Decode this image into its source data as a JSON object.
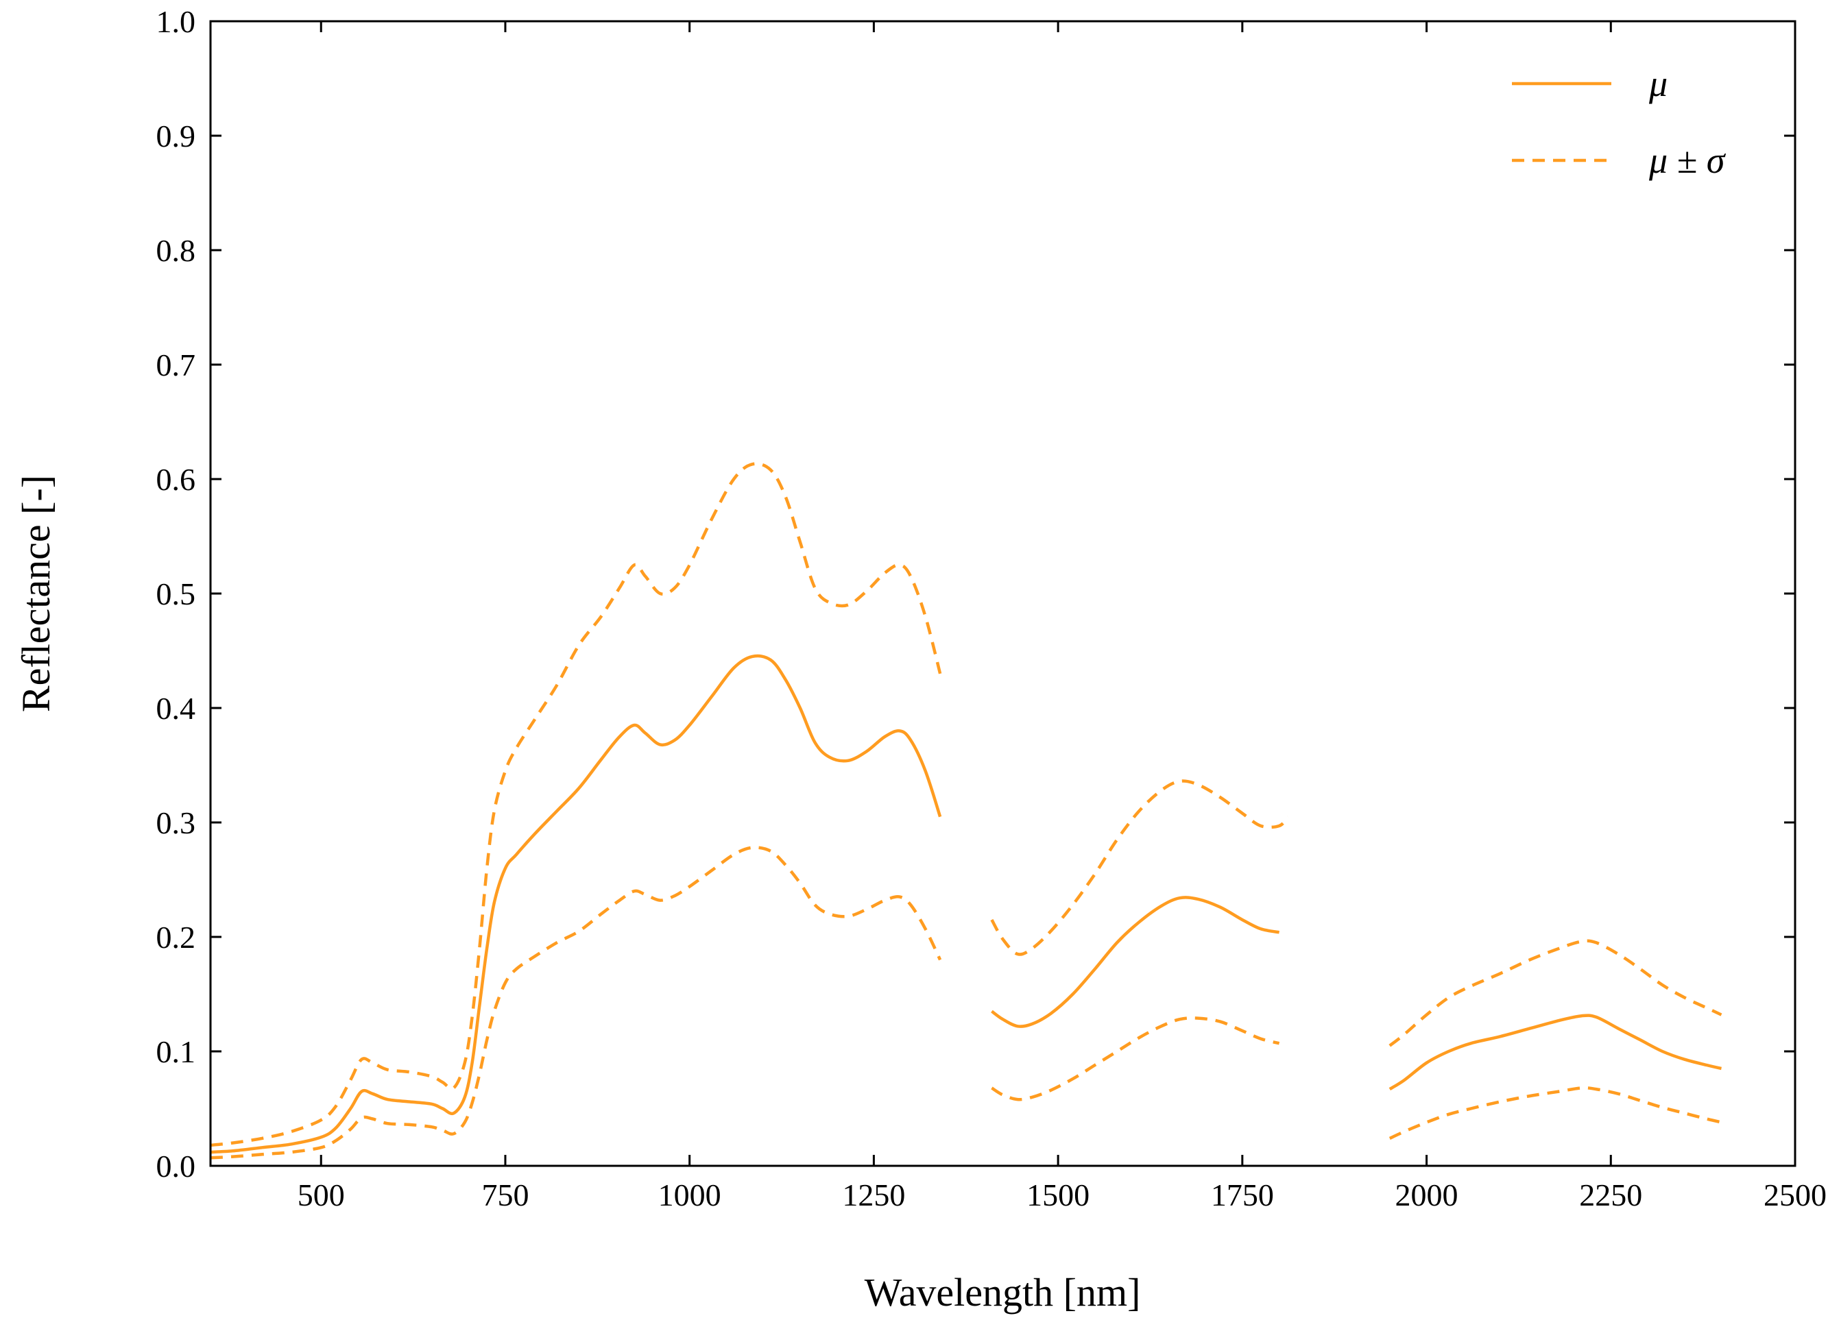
{
  "figure": {
    "background": "#ffffff",
    "accent_color": "#ff9c20",
    "axis_color": "#000000"
  },
  "legend": {
    "position": "top-right",
    "items": [
      {
        "label": "μ",
        "style": "solid"
      },
      {
        "label": "μ ± σ",
        "style": "dashed"
      }
    ]
  },
  "chart_data": {
    "type": "line",
    "title": "",
    "xlabel": "Wavelength [nm]",
    "ylabel": "Reflectance [-]",
    "xlim": [
      350,
      2500
    ],
    "ylim": [
      0,
      1
    ],
    "grid": false,
    "x_ticks": {
      "values": [
        500,
        750,
        1000,
        1250,
        1500,
        1750,
        2000,
        2250,
        2500
      ],
      "labels": [
        "500",
        "750",
        "1000",
        "1250",
        "1500",
        "1750",
        "2000",
        "2250",
        "2500"
      ]
    },
    "y_ticks": {
      "values": [
        0.0,
        0.1,
        0.2,
        0.3,
        0.4,
        0.5,
        0.6,
        0.7,
        0.8,
        0.9,
        1.0
      ],
      "labels": [
        "0.0",
        "0.1",
        "0.2",
        "0.3",
        "0.4",
        "0.5",
        "0.6",
        "0.7",
        "0.8",
        "0.9",
        "1.0"
      ]
    },
    "series": [
      {
        "id": "mu",
        "name": "μ (mean reflectance)",
        "style": "solid",
        "color": "#ff9c20",
        "segments": [
          [
            [
              350,
              0.012
            ],
            [
              380,
              0.013
            ],
            [
              420,
              0.016
            ],
            [
              460,
              0.019
            ],
            [
              500,
              0.025
            ],
            [
              520,
              0.033
            ],
            [
              540,
              0.05
            ],
            [
              555,
              0.065
            ],
            [
              570,
              0.063
            ],
            [
              590,
              0.058
            ],
            [
              620,
              0.056
            ],
            [
              650,
              0.054
            ],
            [
              665,
              0.05
            ],
            [
              680,
              0.046
            ],
            [
              695,
              0.06
            ],
            [
              705,
              0.09
            ],
            [
              715,
              0.14
            ],
            [
              725,
              0.19
            ],
            [
              735,
              0.23
            ],
            [
              750,
              0.26
            ],
            [
              765,
              0.272
            ],
            [
              790,
              0.29
            ],
            [
              820,
              0.31
            ],
            [
              850,
              0.33
            ],
            [
              880,
              0.355
            ],
            [
              905,
              0.375
            ],
            [
              925,
              0.385
            ],
            [
              940,
              0.378
            ],
            [
              960,
              0.368
            ],
            [
              980,
              0.372
            ],
            [
              1000,
              0.385
            ],
            [
              1030,
              0.41
            ],
            [
              1060,
              0.435
            ],
            [
              1085,
              0.445
            ],
            [
              1110,
              0.442
            ],
            [
              1130,
              0.425
            ],
            [
              1150,
              0.4
            ],
            [
              1170,
              0.37
            ],
            [
              1190,
              0.357
            ],
            [
              1215,
              0.354
            ],
            [
              1240,
              0.362
            ],
            [
              1265,
              0.375
            ],
            [
              1285,
              0.38
            ],
            [
              1300,
              0.372
            ],
            [
              1320,
              0.345
            ],
            [
              1340,
              0.305
            ]
          ],
          [
            [
              1410,
              0.135
            ],
            [
              1425,
              0.128
            ],
            [
              1445,
              0.122
            ],
            [
              1465,
              0.124
            ],
            [
              1490,
              0.133
            ],
            [
              1520,
              0.15
            ],
            [
              1550,
              0.172
            ],
            [
              1580,
              0.195
            ],
            [
              1610,
              0.213
            ],
            [
              1640,
              0.227
            ],
            [
              1665,
              0.234
            ],
            [
              1690,
              0.233
            ],
            [
              1720,
              0.226
            ],
            [
              1750,
              0.215
            ],
            [
              1775,
              0.207
            ],
            [
              1800,
              0.204
            ]
          ],
          [
            [
              1950,
              0.067
            ],
            [
              1970,
              0.075
            ],
            [
              2000,
              0.09
            ],
            [
              2030,
              0.1
            ],
            [
              2060,
              0.107
            ],
            [
              2100,
              0.113
            ],
            [
              2140,
              0.12
            ],
            [
              2180,
              0.127
            ],
            [
              2210,
              0.131
            ],
            [
              2230,
              0.13
            ],
            [
              2260,
              0.12
            ],
            [
              2290,
              0.11
            ],
            [
              2320,
              0.1
            ],
            [
              2350,
              0.093
            ],
            [
              2380,
              0.088
            ],
            [
              2400,
              0.085
            ]
          ]
        ]
      },
      {
        "id": "mu-plus-sigma",
        "name": "μ + σ",
        "style": "dashed",
        "color": "#ff9c20",
        "segments": [
          [
            [
              350,
              0.018
            ],
            [
              380,
              0.02
            ],
            [
              420,
              0.024
            ],
            [
              460,
              0.03
            ],
            [
              500,
              0.04
            ],
            [
              520,
              0.052
            ],
            [
              540,
              0.075
            ],
            [
              555,
              0.093
            ],
            [
              570,
              0.09
            ],
            [
              590,
              0.084
            ],
            [
              620,
              0.082
            ],
            [
              650,
              0.078
            ],
            [
              665,
              0.073
            ],
            [
              680,
              0.068
            ],
            [
              695,
              0.09
            ],
            [
              705,
              0.13
            ],
            [
              715,
              0.19
            ],
            [
              725,
              0.26
            ],
            [
              735,
              0.31
            ],
            [
              750,
              0.345
            ],
            [
              765,
              0.365
            ],
            [
              790,
              0.39
            ],
            [
              820,
              0.42
            ],
            [
              850,
              0.455
            ],
            [
              880,
              0.48
            ],
            [
              905,
              0.505
            ],
            [
              925,
              0.525
            ],
            [
              940,
              0.515
            ],
            [
              960,
              0.5
            ],
            [
              980,
              0.505
            ],
            [
              1000,
              0.525
            ],
            [
              1030,
              0.565
            ],
            [
              1060,
              0.6
            ],
            [
              1085,
              0.613
            ],
            [
              1110,
              0.608
            ],
            [
              1130,
              0.585
            ],
            [
              1150,
              0.545
            ],
            [
              1170,
              0.505
            ],
            [
              1190,
              0.492
            ],
            [
              1215,
              0.49
            ],
            [
              1240,
              0.502
            ],
            [
              1265,
              0.518
            ],
            [
              1285,
              0.525
            ],
            [
              1300,
              0.515
            ],
            [
              1320,
              0.48
            ],
            [
              1340,
              0.43
            ]
          ],
          [
            [
              1410,
              0.215
            ],
            [
              1425,
              0.198
            ],
            [
              1445,
              0.185
            ],
            [
              1465,
              0.19
            ],
            [
              1490,
              0.205
            ],
            [
              1520,
              0.228
            ],
            [
              1550,
              0.255
            ],
            [
              1580,
              0.285
            ],
            [
              1610,
              0.31
            ],
            [
              1640,
              0.328
            ],
            [
              1665,
              0.336
            ],
            [
              1690,
              0.333
            ],
            [
              1720,
              0.322
            ],
            [
              1750,
              0.308
            ],
            [
              1775,
              0.297
            ],
            [
              1800,
              0.297
            ],
            [
              1812,
              0.305
            ]
          ],
          [
            [
              1950,
              0.105
            ],
            [
              1970,
              0.115
            ],
            [
              2000,
              0.132
            ],
            [
              2030,
              0.147
            ],
            [
              2060,
              0.157
            ],
            [
              2100,
              0.168
            ],
            [
              2140,
              0.18
            ],
            [
              2180,
              0.19
            ],
            [
              2210,
              0.196
            ],
            [
              2230,
              0.195
            ],
            [
              2260,
              0.185
            ],
            [
              2290,
              0.172
            ],
            [
              2320,
              0.158
            ],
            [
              2350,
              0.147
            ],
            [
              2380,
              0.138
            ],
            [
              2400,
              0.132
            ]
          ]
        ]
      },
      {
        "id": "mu-minus-sigma",
        "name": "μ − σ",
        "style": "dashed",
        "color": "#ff9c20",
        "segments": [
          [
            [
              350,
              0.007
            ],
            [
              380,
              0.008
            ],
            [
              420,
              0.01
            ],
            [
              460,
              0.012
            ],
            [
              500,
              0.016
            ],
            [
              520,
              0.022
            ],
            [
              540,
              0.032
            ],
            [
              555,
              0.042
            ],
            [
              570,
              0.041
            ],
            [
              590,
              0.037
            ],
            [
              620,
              0.036
            ],
            [
              650,
              0.034
            ],
            [
              665,
              0.031
            ],
            [
              680,
              0.028
            ],
            [
              695,
              0.038
            ],
            [
              705,
              0.055
            ],
            [
              715,
              0.08
            ],
            [
              725,
              0.11
            ],
            [
              735,
              0.135
            ],
            [
              750,
              0.16
            ],
            [
              765,
              0.172
            ],
            [
              790,
              0.183
            ],
            [
              820,
              0.195
            ],
            [
              850,
              0.205
            ],
            [
              880,
              0.22
            ],
            [
              905,
              0.232
            ],
            [
              925,
              0.24
            ],
            [
              940,
              0.237
            ],
            [
              960,
              0.232
            ],
            [
              980,
              0.236
            ],
            [
              1000,
              0.244
            ],
            [
              1030,
              0.258
            ],
            [
              1060,
              0.272
            ],
            [
              1085,
              0.278
            ],
            [
              1110,
              0.275
            ],
            [
              1130,
              0.263
            ],
            [
              1150,
              0.247
            ],
            [
              1170,
              0.228
            ],
            [
              1190,
              0.22
            ],
            [
              1215,
              0.218
            ],
            [
              1240,
              0.224
            ],
            [
              1265,
              0.232
            ],
            [
              1285,
              0.235
            ],
            [
              1300,
              0.228
            ],
            [
              1320,
              0.207
            ],
            [
              1340,
              0.18
            ]
          ],
          [
            [
              1410,
              0.068
            ],
            [
              1425,
              0.062
            ],
            [
              1445,
              0.058
            ],
            [
              1465,
              0.06
            ],
            [
              1490,
              0.066
            ],
            [
              1520,
              0.076
            ],
            [
              1550,
              0.088
            ],
            [
              1580,
              0.1
            ],
            [
              1610,
              0.112
            ],
            [
              1640,
              0.122
            ],
            [
              1665,
              0.128
            ],
            [
              1690,
              0.129
            ],
            [
              1720,
              0.126
            ],
            [
              1750,
              0.118
            ],
            [
              1775,
              0.111
            ],
            [
              1800,
              0.107
            ]
          ],
          [
            [
              1950,
              0.024
            ],
            [
              1970,
              0.03
            ],
            [
              2000,
              0.038
            ],
            [
              2030,
              0.045
            ],
            [
              2060,
              0.05
            ],
            [
              2100,
              0.056
            ],
            [
              2140,
              0.061
            ],
            [
              2180,
              0.065
            ],
            [
              2210,
              0.068
            ],
            [
              2230,
              0.067
            ],
            [
              2260,
              0.063
            ],
            [
              2290,
              0.057
            ],
            [
              2320,
              0.051
            ],
            [
              2350,
              0.046
            ],
            [
              2380,
              0.041
            ],
            [
              2400,
              0.038
            ]
          ]
        ]
      }
    ]
  }
}
